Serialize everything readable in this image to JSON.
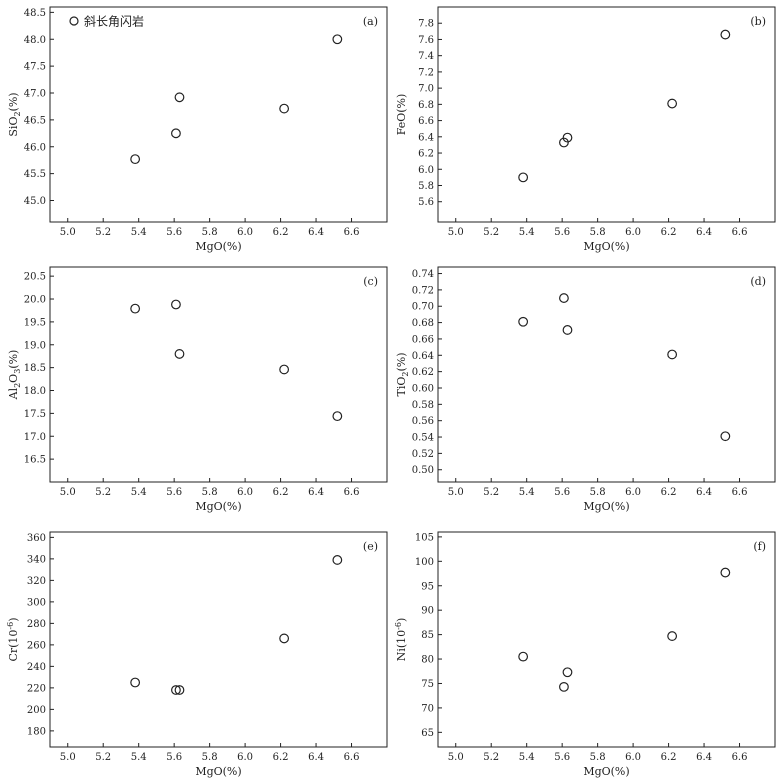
{
  "chart_data": [
    {
      "type": "scatter",
      "panel_label": "(a)",
      "xlabel": "MgO(%)",
      "ylabel": "SiO2(%)",
      "ylabel_main": "SiO",
      "ylabel_sub": "2",
      "ylabel_tail": "(%)",
      "xlim": [
        4.9,
        6.8
      ],
      "ylim": [
        44.6,
        48.6
      ],
      "xticks": [
        5.0,
        5.2,
        5.4,
        5.6,
        5.8,
        6.0,
        6.2,
        6.4,
        6.6
      ],
      "xtick_labels": [
        "5.0",
        "5.2",
        "5.4",
        "5.6",
        "5.8",
        "6.0",
        "6.2",
        "6.4",
        "6.6"
      ],
      "yticks": [
        45.0,
        45.5,
        46.0,
        46.5,
        47.0,
        47.5,
        48.0,
        48.5
      ],
      "ytick_labels": [
        "45.0",
        "45.5",
        "46.0",
        "46.5",
        "47.0",
        "47.5",
        "48.0",
        "48.5"
      ],
      "legend": "斜长角闪岩",
      "legend_position": "top-left",
      "series": [
        {
          "name": "斜长角闪岩",
          "marker": "open-circle",
          "points": [
            [
              5.38,
              45.77
            ],
            [
              5.61,
              46.25
            ],
            [
              5.63,
              46.92
            ],
            [
              6.22,
              46.71
            ],
            [
              6.52,
              48.0
            ]
          ]
        }
      ]
    },
    {
      "type": "scatter",
      "panel_label": "(b)",
      "xlabel": "MgO(%)",
      "ylabel": "FeO(%)",
      "ylabel_main": "FeO(%)",
      "ylabel_sub": "",
      "ylabel_tail": "",
      "xlim": [
        4.9,
        6.8
      ],
      "ylim": [
        5.35,
        8.0
      ],
      "xticks": [
        5.0,
        5.2,
        5.4,
        5.6,
        5.8,
        6.0,
        6.2,
        6.4,
        6.6
      ],
      "xtick_labels": [
        "5.0",
        "5.2",
        "5.4",
        "5.6",
        "5.8",
        "6.0",
        "6.2",
        "6.4",
        "6.6"
      ],
      "yticks": [
        5.6,
        5.8,
        6.0,
        6.2,
        6.4,
        6.6,
        6.8,
        7.0,
        7.2,
        7.4,
        7.6,
        7.8
      ],
      "ytick_labels": [
        "5.6",
        "5.8",
        "6.0",
        "6.2",
        "6.4",
        "6.6",
        "6.8",
        "7.0",
        "7.2",
        "7.4",
        "7.6",
        "7.8"
      ],
      "series": [
        {
          "name": "斜长角闪岩",
          "marker": "open-circle",
          "points": [
            [
              5.38,
              5.9
            ],
            [
              5.61,
              6.33
            ],
            [
              5.63,
              6.39
            ],
            [
              6.22,
              6.81
            ],
            [
              6.52,
              7.66
            ]
          ]
        }
      ]
    },
    {
      "type": "scatter",
      "panel_label": "(c)",
      "xlabel": "MgO(%)",
      "ylabel": "Al2O3(%)",
      "ylabel_main": "Al",
      "ylabel_sub": "2",
      "ylabel_tail": "O",
      "ylabel_sub2": "3",
      "ylabel_tail2": "(%)",
      "xlim": [
        4.9,
        6.8
      ],
      "ylim": [
        16.0,
        20.7
      ],
      "xticks": [
        5.0,
        5.2,
        5.4,
        5.6,
        5.8,
        6.0,
        6.2,
        6.4,
        6.6
      ],
      "xtick_labels": [
        "5.0",
        "5.2",
        "5.4",
        "5.6",
        "5.8",
        "6.0",
        "6.2",
        "6.4",
        "6.6"
      ],
      "yticks": [
        16.5,
        17.0,
        17.5,
        18.0,
        18.5,
        19.0,
        19.5,
        20.0,
        20.5
      ],
      "ytick_labels": [
        "16.5",
        "17.0",
        "17.5",
        "18.0",
        "18.5",
        "19.0",
        "19.5",
        "20.0",
        "20.5"
      ],
      "series": [
        {
          "name": "斜长角闪岩",
          "marker": "open-circle",
          "points": [
            [
              5.38,
              19.79
            ],
            [
              5.61,
              19.88
            ],
            [
              5.63,
              18.8
            ],
            [
              6.22,
              18.46
            ],
            [
              6.52,
              17.44
            ]
          ]
        }
      ]
    },
    {
      "type": "scatter",
      "panel_label": "(d)",
      "xlabel": "MgO(%)",
      "ylabel": "TiO2(%)",
      "ylabel_main": "TiO",
      "ylabel_sub": "2",
      "ylabel_tail": "(%)",
      "xlim": [
        4.9,
        6.8
      ],
      "ylim": [
        0.485,
        0.748
      ],
      "xticks": [
        5.0,
        5.2,
        5.4,
        5.6,
        5.8,
        6.0,
        6.2,
        6.4,
        6.6
      ],
      "xtick_labels": [
        "5.0",
        "5.2",
        "5.4",
        "5.6",
        "5.8",
        "6.0",
        "6.2",
        "6.4",
        "6.6"
      ],
      "yticks": [
        0.5,
        0.52,
        0.54,
        0.56,
        0.58,
        0.6,
        0.62,
        0.64,
        0.66,
        0.68,
        0.7,
        0.72,
        0.74
      ],
      "ytick_labels": [
        "0.50",
        "0.52",
        "0.54",
        "0.56",
        "0.58",
        "0.60",
        "0.62",
        "0.64",
        "0.66",
        "0.68",
        "0.70",
        "0.72",
        "0.74"
      ],
      "series": [
        {
          "name": "斜长角闪岩",
          "marker": "open-circle",
          "points": [
            [
              5.38,
              0.681
            ],
            [
              5.61,
              0.71
            ],
            [
              5.63,
              0.671
            ],
            [
              6.22,
              0.641
            ],
            [
              6.52,
              0.541
            ]
          ]
        }
      ]
    },
    {
      "type": "scatter",
      "panel_label": "(e)",
      "xlabel": "MgO(%)",
      "ylabel": "Cr(10⁻⁶)",
      "ylabel_main": "Cr(10",
      "ylabel_sup": "-6",
      "ylabel_tail": ")",
      "xlim": [
        4.9,
        6.8
      ],
      "ylim": [
        165,
        365
      ],
      "xticks": [
        5.0,
        5.2,
        5.4,
        5.6,
        5.8,
        6.0,
        6.2,
        6.4,
        6.6
      ],
      "xtick_labels": [
        "5.0",
        "5.2",
        "5.4",
        "5.6",
        "5.8",
        "6.0",
        "6.2",
        "6.4",
        "6.6"
      ],
      "yticks": [
        180,
        200,
        220,
        240,
        260,
        280,
        300,
        320,
        340,
        360
      ],
      "ytick_labels": [
        "180",
        "200",
        "220",
        "240",
        "260",
        "280",
        "300",
        "320",
        "340",
        "360"
      ],
      "series": [
        {
          "name": "斜长角闪岩",
          "marker": "open-circle",
          "points": [
            [
              5.38,
              225
            ],
            [
              5.61,
              218
            ],
            [
              5.63,
              218
            ],
            [
              6.22,
              266
            ],
            [
              6.52,
              339
            ]
          ]
        }
      ]
    },
    {
      "type": "scatter",
      "panel_label": "(f)",
      "xlabel": "MgO(%)",
      "ylabel": "Ni(10⁻⁶)",
      "ylabel_main": "Ni(10",
      "ylabel_sup": "-6",
      "ylabel_tail": ")",
      "xlim": [
        4.9,
        6.8
      ],
      "ylim": [
        62,
        106
      ],
      "xticks": [
        5.0,
        5.2,
        5.4,
        5.6,
        5.8,
        6.0,
        6.2,
        6.4,
        6.6
      ],
      "xtick_labels": [
        "5.0",
        "5.2",
        "5.4",
        "5.6",
        "5.8",
        "6.0",
        "6.2",
        "6.4",
        "6.6"
      ],
      "yticks": [
        65,
        70,
        75,
        80,
        85,
        90,
        95,
        100,
        105
      ],
      "ytick_labels": [
        "65",
        "70",
        "75",
        "80",
        "85",
        "90",
        "95",
        "100",
        "105"
      ],
      "series": [
        {
          "name": "斜长角闪岩",
          "marker": "open-circle",
          "points": [
            [
              5.38,
              80.5
            ],
            [
              5.61,
              74.3
            ],
            [
              5.63,
              77.3
            ],
            [
              6.22,
              84.7
            ],
            [
              6.52,
              97.7
            ]
          ]
        }
      ]
    }
  ]
}
